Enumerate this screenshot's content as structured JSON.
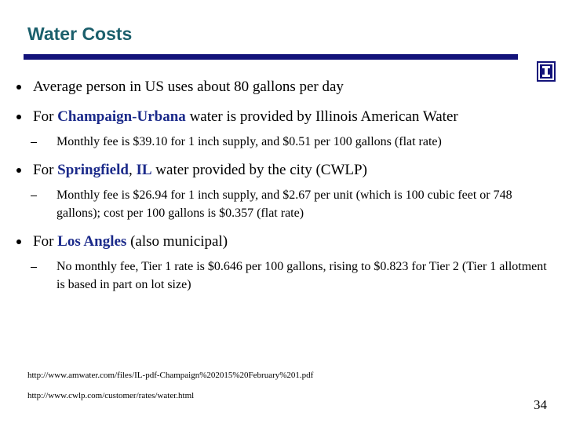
{
  "header": {
    "title": "Water Costs"
  },
  "bullets": [
    {
      "segments": [
        {
          "text": "Average person in US uses about 80 gallons per day"
        }
      ],
      "sub": []
    },
    {
      "segments": [
        {
          "text": "For "
        },
        {
          "text": "Champaign-Urbana",
          "highlight": true
        },
        {
          "text": " water is provided by Illinois American Water"
        }
      ],
      "sub": [
        "Monthly fee is $39.10 for 1 inch supply, and $0.51 per 100 gallons (flat rate)"
      ]
    },
    {
      "segments": [
        {
          "text": "For "
        },
        {
          "text": "Springfield",
          "highlight": true
        },
        {
          "text": ", "
        },
        {
          "text": "IL",
          "highlight": true
        },
        {
          "text": " water provided by the city (CWLP)"
        }
      ],
      "sub": [
        "Monthly fee is $26.94 for 1 inch supply, and $2.67 per unit (which is 100 cubic feet or 748 gallons); cost per 100 gallons is $0.357 (flat rate)"
      ]
    },
    {
      "segments": [
        {
          "text": "For "
        },
        {
          "text": "Los Angles",
          "highlight": true
        },
        {
          "text": " (also municipal)"
        }
      ],
      "sub": [
        "No monthly fee, Tier 1 rate is $0.646 per 100 gallons, rising to $0.823 for Tier 2 (Tier 1 allotment is based in part on lot size)"
      ]
    }
  ],
  "links": [
    "http://www.amwater.com/files/IL-pdf-Champaign%202015%20February%201.pdf",
    "http://www.cwlp.com/customer/rates/water.html"
  ],
  "page_number": "34"
}
